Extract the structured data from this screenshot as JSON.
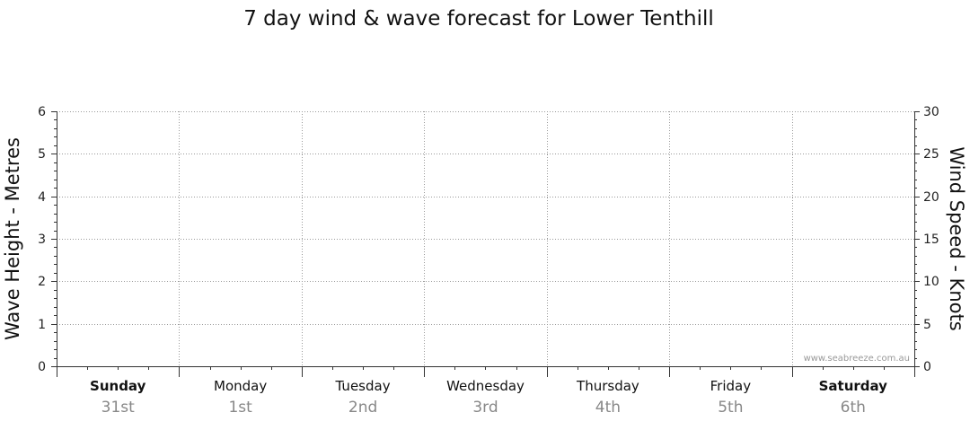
{
  "chart_data": {
    "type": "line",
    "title": "7 day wind & wave forecast for Lower Tenthill",
    "ylabel_left": "Wave Height - Metres",
    "ylabel_right": "Wind Speed - Knots",
    "ylim_left": [
      0,
      6
    ],
    "ylim_right": [
      0,
      30
    ],
    "yticks_left": [
      0,
      1,
      2,
      3,
      4,
      5,
      6
    ],
    "yticks_right": [
      0,
      5,
      10,
      15,
      20,
      25,
      30
    ],
    "grid": true,
    "days": [
      {
        "name": "Sunday",
        "date": "31st",
        "bold": true
      },
      {
        "name": "Monday",
        "date": "1st",
        "bold": false
      },
      {
        "name": "Tuesday",
        "date": "2nd",
        "bold": false
      },
      {
        "name": "Wednesday",
        "date": "3rd",
        "bold": false
      },
      {
        "name": "Thursday",
        "date": "4th",
        "bold": false
      },
      {
        "name": "Friday",
        "date": "5th",
        "bold": false
      },
      {
        "name": "Saturday",
        "date": "6th",
        "bold": true
      }
    ],
    "series": [],
    "watermark": "www.seabreeze.com.au"
  }
}
